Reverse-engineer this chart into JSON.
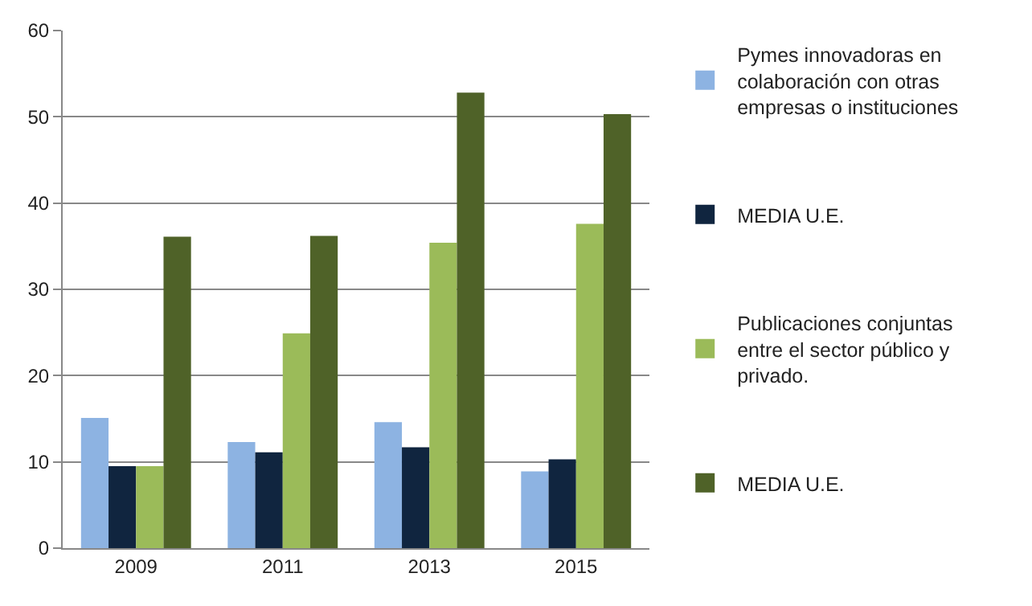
{
  "chart_data": {
    "type": "bar",
    "categories": [
      "2009",
      "2011",
      "2013",
      "2015"
    ],
    "series": [
      {
        "name": "Pymes innovadoras en colaboración con otras empresas o instituciones",
        "color": "#8db3e2",
        "values": [
          15.1,
          12.3,
          14.6,
          8.9
        ]
      },
      {
        "name": "MEDIA U.E.",
        "color": "#10253f",
        "values": [
          9.5,
          11.1,
          11.7,
          10.3
        ]
      },
      {
        "name": "Publicaciones conjuntas entre el sector público y privado.",
        "color": "#9bbb59",
        "values": [
          9.5,
          24.9,
          35.4,
          37.6
        ]
      },
      {
        "name": "MEDIA U.E.",
        "color": "#4f6228",
        "values": [
          36.1,
          36.2,
          52.8,
          50.3
        ]
      }
    ],
    "ylim": [
      0,
      60
    ],
    "yticks": [
      0,
      10,
      20,
      30,
      40,
      50,
      60
    ],
    "grid": "y",
    "legend": "right"
  }
}
